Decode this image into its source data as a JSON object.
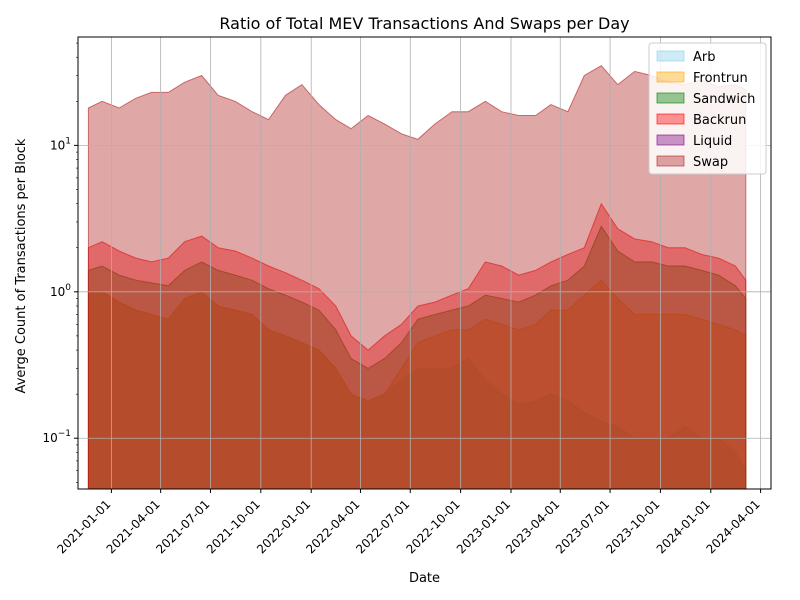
{
  "chart_data": {
    "type": "area",
    "title": "Ratio of Total MEV Transactions And Swaps per Day",
    "xlabel": "Date",
    "ylabel": "Averge Count of Transactions per Block",
    "yscale": "log",
    "ylim": [
      0.045,
      55
    ],
    "xlim": [
      "2020-11-01",
      "2024-04-20"
    ],
    "grid": true,
    "legend_position": "top-right",
    "x_ticks": [
      "2021-01-01",
      "2021-04-01",
      "2021-07-01",
      "2021-10-01",
      "2022-01-01",
      "2022-04-01",
      "2022-07-01",
      "2022-10-01",
      "2023-01-01",
      "2023-04-01",
      "2023-07-01",
      "2023-10-01",
      "2024-01-01",
      "2024-04-01"
    ],
    "y_ticks": [
      {
        "value": 0.1,
        "label": "10^-1"
      },
      {
        "value": 1,
        "label": "10^0"
      },
      {
        "value": 10,
        "label": "10^1"
      }
    ],
    "x": [
      "2020-11-20",
      "2020-12-15",
      "2021-01-15",
      "2021-02-15",
      "2021-03-15",
      "2021-04-15",
      "2021-05-15",
      "2021-06-15",
      "2021-07-15",
      "2021-08-15",
      "2021-09-15",
      "2021-10-15",
      "2021-11-15",
      "2021-12-15",
      "2022-01-15",
      "2022-02-15",
      "2022-03-15",
      "2022-04-15",
      "2022-05-15",
      "2022-06-15",
      "2022-07-15",
      "2022-08-15",
      "2022-09-15",
      "2022-10-15",
      "2022-11-15",
      "2022-12-15",
      "2023-01-15",
      "2023-02-15",
      "2023-03-15",
      "2023-04-15",
      "2023-05-15",
      "2023-06-15",
      "2023-07-15",
      "2023-08-15",
      "2023-09-15",
      "2023-10-15",
      "2023-11-15",
      "2023-12-15",
      "2024-01-15",
      "2024-02-15",
      "2024-03-05"
    ],
    "series": [
      {
        "name": "Arb",
        "color": "#87ceeb",
        "opacity": 0.4,
        "values": [
          1.0,
          1.0,
          0.85,
          0.75,
          0.7,
          0.65,
          0.9,
          1.0,
          0.8,
          0.75,
          0.7,
          0.55,
          0.5,
          0.45,
          0.4,
          0.3,
          0.2,
          0.18,
          0.2,
          0.25,
          0.3,
          0.3,
          0.3,
          0.35,
          0.25,
          0.2,
          0.17,
          0.18,
          0.2,
          0.18,
          0.15,
          0.13,
          0.12,
          0.1,
          0.1,
          0.1,
          0.12,
          0.1,
          0.1,
          0.08,
          0.06
        ]
      },
      {
        "name": "Frontrun",
        "color": "#ffa500",
        "opacity": 0.4,
        "values": [
          1.0,
          1.0,
          0.85,
          0.75,
          0.7,
          0.65,
          0.9,
          1.0,
          0.8,
          0.75,
          0.7,
          0.55,
          0.5,
          0.45,
          0.4,
          0.3,
          0.2,
          0.18,
          0.2,
          0.3,
          0.45,
          0.5,
          0.55,
          0.55,
          0.65,
          0.6,
          0.55,
          0.6,
          0.75,
          0.75,
          0.95,
          1.2,
          0.9,
          0.7,
          0.7,
          0.7,
          0.7,
          0.65,
          0.6,
          0.55,
          0.5
        ]
      },
      {
        "name": "Sandwich",
        "color": "#008000",
        "opacity": 0.4,
        "values": [
          1.4,
          1.5,
          1.3,
          1.2,
          1.15,
          1.1,
          1.4,
          1.6,
          1.4,
          1.3,
          1.2,
          1.05,
          0.95,
          0.85,
          0.75,
          0.55,
          0.35,
          0.3,
          0.35,
          0.45,
          0.65,
          0.7,
          0.75,
          0.8,
          0.95,
          0.9,
          0.85,
          0.95,
          1.1,
          1.2,
          1.5,
          2.8,
          1.9,
          1.6,
          1.6,
          1.5,
          1.5,
          1.4,
          1.3,
          1.1,
          0.9
        ]
      },
      {
        "name": "Backrun",
        "color": "#ff0000",
        "opacity": 0.4,
        "values": [
          2.0,
          2.2,
          1.9,
          1.7,
          1.6,
          1.7,
          2.2,
          2.4,
          2.0,
          1.9,
          1.7,
          1.5,
          1.35,
          1.2,
          1.05,
          0.8,
          0.5,
          0.4,
          0.5,
          0.6,
          0.8,
          0.85,
          0.95,
          1.05,
          1.6,
          1.5,
          1.3,
          1.4,
          1.6,
          1.8,
          2.0,
          4.0,
          2.7,
          2.3,
          2.2,
          2.0,
          2.0,
          1.8,
          1.7,
          1.5,
          1.2
        ]
      },
      {
        "name": "Liquid",
        "color": "#800080",
        "opacity": 0.4,
        "values": [
          0.001,
          0.001,
          0.001,
          0.001,
          0.001,
          0.001,
          0.001,
          0.001,
          0.001,
          0.001,
          0.001,
          0.001,
          0.001,
          0.001,
          0.001,
          0.001,
          0.001,
          0.001,
          0.001,
          0.001,
          0.001,
          0.001,
          0.001,
          0.001,
          0.001,
          0.001,
          0.001,
          0.001,
          0.001,
          0.001,
          0.001,
          0.001,
          0.001,
          0.001,
          0.001,
          0.001,
          0.001,
          0.001,
          0.001,
          0.001,
          0.001
        ]
      },
      {
        "name": "Swap",
        "color": "#b22222",
        "opacity": 0.4,
        "values": [
          18,
          20,
          18,
          21,
          23,
          23,
          27,
          30,
          22,
          20,
          17,
          15,
          22,
          26,
          19,
          15,
          13,
          16,
          14,
          12,
          11,
          14,
          17,
          17,
          20,
          17,
          16,
          16,
          19,
          17,
          30,
          35,
          26,
          32,
          30,
          27,
          26,
          28,
          25,
          26,
          24
        ]
      }
    ]
  }
}
